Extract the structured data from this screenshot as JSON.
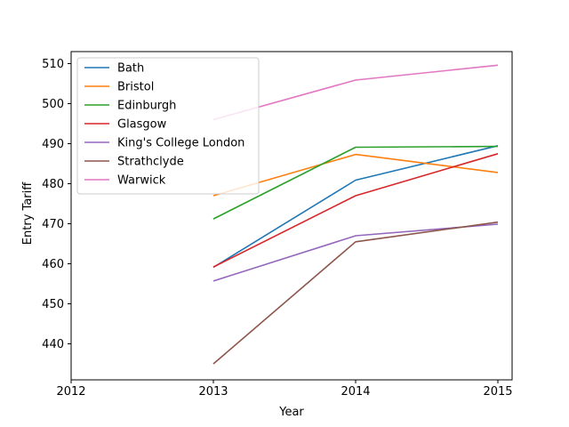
{
  "chart_data": {
    "type": "line",
    "xlabel": "Year",
    "ylabel": "Entry Tariff",
    "x": [
      2013,
      2014,
      2015
    ],
    "xlim": [
      2012,
      2015.1
    ],
    "ylim": [
      431,
      513
    ],
    "xticks": [
      2012,
      2013,
      2014,
      2015
    ],
    "yticks": [
      440,
      450,
      460,
      470,
      480,
      490,
      500,
      510
    ],
    "grid": false,
    "legend_position": "top-left",
    "series": [
      {
        "name": "Bath",
        "color": "#1f77b4",
        "values": [
          459.1,
          480.9,
          489.5
        ]
      },
      {
        "name": "Bristol",
        "color": "#ff7f0e",
        "values": [
          477.0,
          487.3,
          482.8
        ]
      },
      {
        "name": "Edinburgh",
        "color": "#2ca02c",
        "values": [
          471.2,
          489.1,
          489.3
        ]
      },
      {
        "name": "Glasgow",
        "color": "#d62728",
        "values": [
          459.2,
          477.0,
          487.5
        ]
      },
      {
        "name": "King's College London",
        "color": "#9467bd",
        "values": [
          455.7,
          467.0,
          469.9
        ]
      },
      {
        "name": "Strathclyde",
        "color": "#8c564b",
        "values": [
          435.0,
          465.5,
          470.4
        ]
      },
      {
        "name": "Warwick",
        "color": "#e377c2",
        "values": [
          496.0,
          505.9,
          509.6
        ]
      }
    ]
  }
}
